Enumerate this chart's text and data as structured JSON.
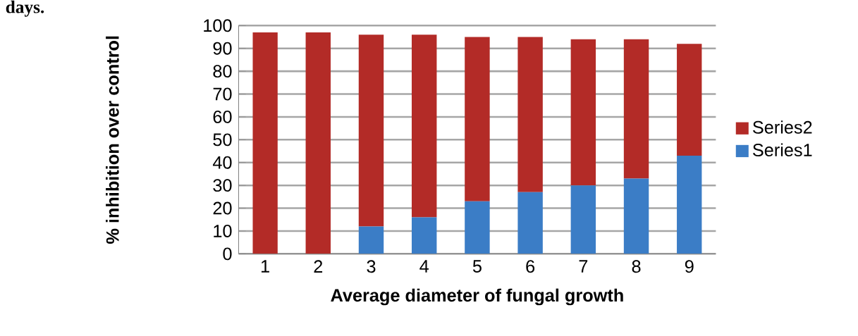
{
  "chart_data": {
    "type": "bar",
    "stacked": true,
    "xlabel": "Average diameter of fungal growth",
    "ylabel": "% inhibition over control",
    "annotations": [
      "days."
    ],
    "categories": [
      "1",
      "2",
      "3",
      "4",
      "5",
      "6",
      "7",
      "8",
      "9"
    ],
    "series": [
      {
        "name": "Series1",
        "color": "#3b7dc6",
        "values": [
          0,
          0,
          12,
          16,
          23,
          27,
          30,
          33,
          43
        ]
      },
      {
        "name": "Series2",
        "color": "#b32b27",
        "values": [
          97,
          97,
          84,
          80,
          72,
          68,
          64,
          61,
          49
        ]
      }
    ],
    "ylim": [
      0,
      100
    ],
    "yticks": [
      0,
      10,
      20,
      30,
      40,
      50,
      60,
      70,
      80,
      90,
      100
    ],
    "grid": "y",
    "legend": "right"
  }
}
